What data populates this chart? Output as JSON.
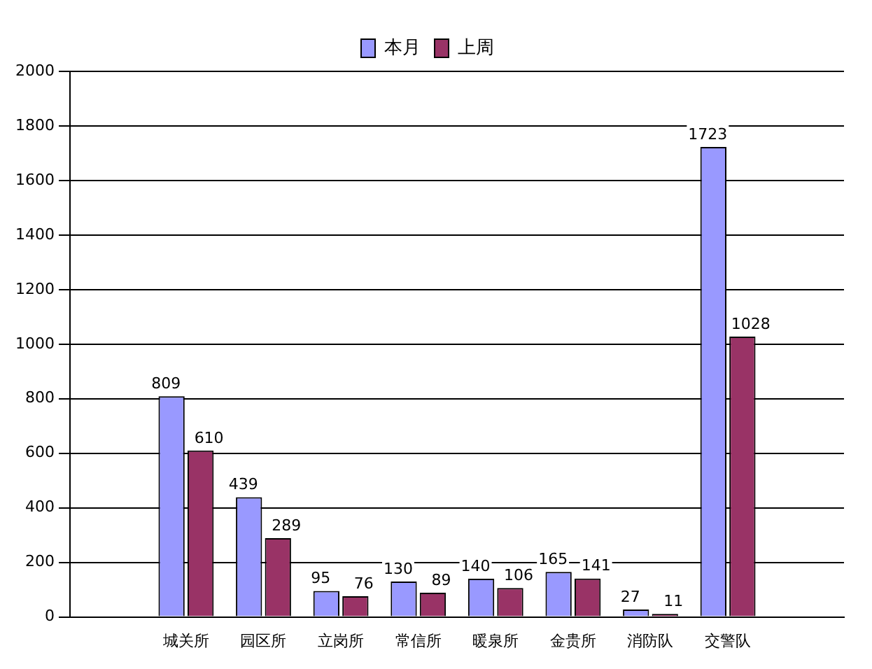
{
  "chart_data": {
    "type": "bar",
    "categories": [
      null,
      "城关所",
      "园区所",
      "立岗所",
      "常信所",
      "暖泉所",
      "金贵所",
      "消防队",
      "交警队",
      null
    ],
    "series": [
      {
        "name": "本月",
        "color": "#9999ff",
        "values": [
          null,
          809,
          439,
          95,
          130,
          140,
          165,
          27,
          1723,
          null
        ]
      },
      {
        "name": "上周",
        "color": "#993366",
        "values": [
          null,
          610,
          289,
          76,
          89,
          106,
          141,
          11,
          1028,
          null
        ]
      }
    ],
    "ylim": [
      0,
      2000
    ],
    "yticks": [
      0,
      200,
      400,
      600,
      800,
      1000,
      1200,
      1400,
      1600,
      1800,
      2000
    ],
    "grid": "y",
    "legend": "top",
    "data_labels": true
  }
}
